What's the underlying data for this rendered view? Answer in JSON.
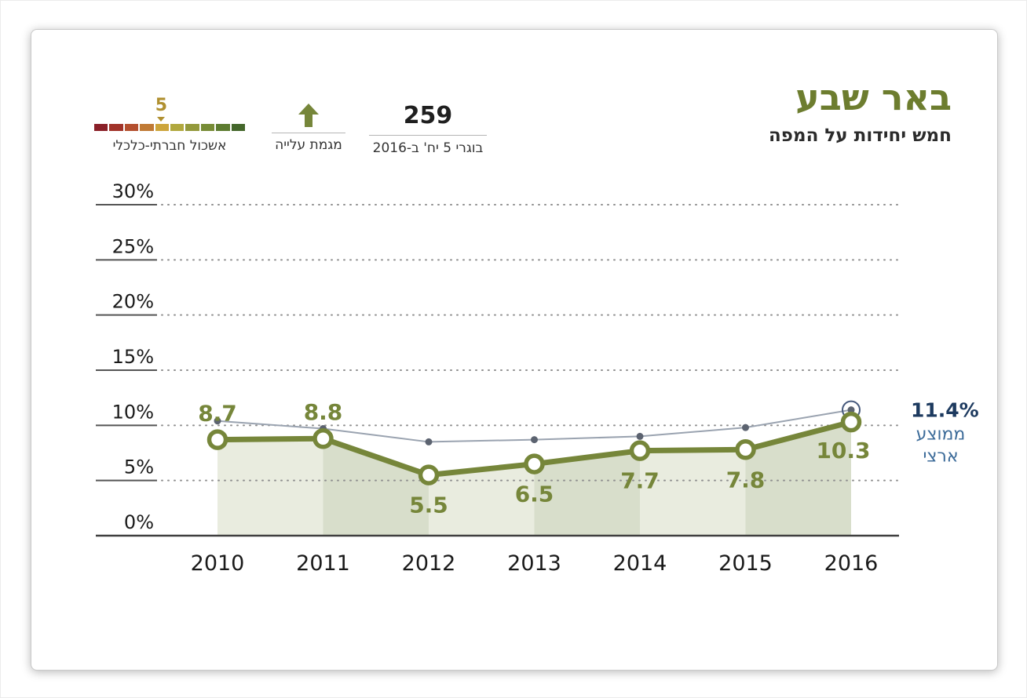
{
  "card": {
    "title": "באר שבע",
    "subtitle": "חמש יחידות על המפה"
  },
  "stats": {
    "graduates": {
      "value": "259",
      "caption": "בוגרי 5 יח' ב-2016"
    },
    "trend": {
      "label": "מגמת עלייה",
      "icon": "up-arrow",
      "color": "#76863a"
    },
    "cluster": {
      "value": "5",
      "label": "אשכול חברתי-כלכלי",
      "marker_index": 4,
      "scale_colors": [
        "#8a2028",
        "#a13329",
        "#b44f2e",
        "#c07a35",
        "#cda53b",
        "#b1a83e",
        "#93993b",
        "#778c36",
        "#5d7c30",
        "#44672b"
      ]
    }
  },
  "chart_data": {
    "type": "line",
    "title": "באר שבע — חמש יחידות על המפה",
    "categories": [
      "2010",
      "2011",
      "2012",
      "2013",
      "2014",
      "2015",
      "2016"
    ],
    "series": [
      {
        "name": "באר שבע",
        "values": [
          8.7,
          8.8,
          5.5,
          6.5,
          7.7,
          7.8,
          10.3
        ],
        "color": "#76863a",
        "point_labels": [
          "8.7",
          "8.8",
          "5.5",
          "6.5",
          "7.7",
          "7.8",
          "10.3"
        ],
        "label_positions": [
          "above",
          "above",
          "below",
          "below",
          "below",
          "below",
          "below-left"
        ]
      },
      {
        "name": "ממוצע ארצי",
        "values": [
          10.4,
          9.7,
          8.5,
          8.7,
          9.0,
          9.8,
          11.4
        ],
        "color": "#9aa3b0",
        "dot_color": "#5c6370",
        "end_ring_color": "#46597c"
      }
    ],
    "ylim": [
      0,
      30
    ],
    "yticks": [
      0,
      5,
      10,
      15,
      20,
      25,
      30
    ],
    "ytick_suffix": "%",
    "grid": "dotted-horizontal",
    "legend_position": "annotation-right",
    "band_colors": [
      "#e9ecdf",
      "#d8decb"
    ],
    "annotation": {
      "value": "11.4%",
      "value_color": "#1d3a5f",
      "lines": [
        "ממוצע",
        "ארצי"
      ],
      "line_color": "#3c6b99"
    }
  }
}
